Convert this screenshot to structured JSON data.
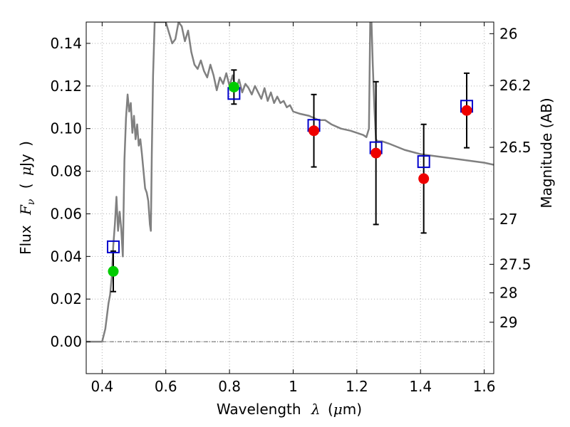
{
  "chart_data": {
    "type": "scatter",
    "xlabel": {
      "text": "Wavelength",
      "symbol": "λ",
      "unit_open": "(",
      "unit_mu": "μ",
      "unit_rest": "m)"
    },
    "ylabel": {
      "text": "Flux",
      "symbol": "F",
      "subscript": "ν",
      "unit_open": "(",
      "unit_mu": "μ",
      "unit_rest": "Jy",
      "unit_close": ")"
    },
    "ylabel_right": "Magnitude (AB)",
    "xlim": [
      0.35,
      1.63
    ],
    "ylim": [
      -0.015,
      0.15
    ],
    "grid": true,
    "x_ticks": [
      {
        "value": 0.4,
        "label": "0.4"
      },
      {
        "value": 0.6,
        "label": "0.6"
      },
      {
        "value": 0.8,
        "label": "0.8"
      },
      {
        "value": 1.0,
        "label": "1"
      },
      {
        "value": 1.2,
        "label": "1.2"
      },
      {
        "value": 1.4,
        "label": "1.4"
      },
      {
        "value": 1.6,
        "label": "1.6"
      }
    ],
    "y_ticks": [
      {
        "value": 0.0,
        "label": "0.00"
      },
      {
        "value": 0.02,
        "label": "0.02"
      },
      {
        "value": 0.04,
        "label": "0.04"
      },
      {
        "value": 0.06,
        "label": "0.06"
      },
      {
        "value": 0.08,
        "label": "0.08"
      },
      {
        "value": 0.1,
        "label": "0.10"
      },
      {
        "value": 0.12,
        "label": "0.12"
      },
      {
        "value": 0.14,
        "label": "0.14"
      }
    ],
    "mag_ticks": [
      {
        "mag": 26,
        "label": "26"
      },
      {
        "mag": 26.2,
        "label": "26.2"
      },
      {
        "mag": 26.5,
        "label": "26.5"
      },
      {
        "mag": 27,
        "label": "27"
      },
      {
        "mag": 27.5,
        "label": "27.5"
      },
      {
        "mag": 28,
        "label": "28"
      },
      {
        "mag": 29,
        "label": "29"
      }
    ],
    "colors": {
      "template": "#808080",
      "model": "#0000cc",
      "green": "#00cc00",
      "red": "#ee0000",
      "errorbar": "#000000",
      "grid": "#b0b0b0"
    },
    "template_sed": {
      "x": [
        0.35,
        0.4,
        0.405,
        0.41,
        0.415,
        0.42,
        0.425,
        0.43,
        0.435,
        0.44,
        0.445,
        0.45,
        0.455,
        0.46,
        0.465,
        0.47,
        0.475,
        0.48,
        0.485,
        0.49,
        0.495,
        0.5,
        0.505,
        0.51,
        0.515,
        0.52,
        0.525,
        0.53,
        0.535,
        0.54,
        0.545,
        0.55,
        0.553,
        0.556,
        0.56,
        0.565,
        0.6,
        0.61,
        0.62,
        0.63,
        0.64,
        0.65,
        0.66,
        0.67,
        0.68,
        0.69,
        0.7,
        0.71,
        0.72,
        0.73,
        0.74,
        0.75,
        0.76,
        0.77,
        0.78,
        0.79,
        0.8,
        0.81,
        0.82,
        0.83,
        0.84,
        0.85,
        0.86,
        0.87,
        0.88,
        0.89,
        0.9,
        0.91,
        0.92,
        0.93,
        0.94,
        0.95,
        0.96,
        0.97,
        0.98,
        0.99,
        1.0,
        1.02,
        1.05,
        1.08,
        1.1,
        1.12,
        1.15,
        1.18,
        1.2,
        1.22,
        1.23,
        1.238,
        1.242,
        1.246,
        1.25,
        1.255,
        1.26,
        1.265,
        1.27,
        1.28,
        1.3,
        1.35,
        1.4,
        1.45,
        1.5,
        1.55,
        1.6,
        1.63
      ],
      "y": [
        0.0,
        0.0,
        0.003,
        0.006,
        0.012,
        0.018,
        0.022,
        0.03,
        0.045,
        0.055,
        0.068,
        0.052,
        0.061,
        0.053,
        0.04,
        0.085,
        0.105,
        0.116,
        0.108,
        0.112,
        0.098,
        0.106,
        0.095,
        0.102,
        0.092,
        0.095,
        0.088,
        0.08,
        0.072,
        0.07,
        0.066,
        0.055,
        0.052,
        0.088,
        0.125,
        0.15,
        0.15,
        0.145,
        0.14,
        0.142,
        0.15,
        0.148,
        0.141,
        0.146,
        0.136,
        0.13,
        0.128,
        0.132,
        0.127,
        0.124,
        0.13,
        0.125,
        0.118,
        0.124,
        0.121,
        0.126,
        0.12,
        0.125,
        0.118,
        0.123,
        0.117,
        0.121,
        0.119,
        0.116,
        0.12,
        0.117,
        0.114,
        0.119,
        0.113,
        0.117,
        0.112,
        0.115,
        0.112,
        0.113,
        0.11,
        0.111,
        0.108,
        0.107,
        0.106,
        0.104,
        0.104,
        0.102,
        0.1,
        0.099,
        0.098,
        0.097,
        0.096,
        0.1,
        0.15,
        0.15,
        0.13,
        0.11,
        0.095,
        0.094,
        0.094,
        0.094,
        0.093,
        0.09,
        0.088,
        0.087,
        0.086,
        0.085,
        0.084,
        0.083
      ]
    },
    "model_points": [
      {
        "x": 0.435,
        "y": 0.0445
      },
      {
        "x": 0.814,
        "y": 0.1165
      },
      {
        "x": 1.065,
        "y": 0.1015
      },
      {
        "x": 1.26,
        "y": 0.091
      },
      {
        "x": 1.41,
        "y": 0.0845
      },
      {
        "x": 1.545,
        "y": 0.1105
      }
    ],
    "observed_green": [
      {
        "x": 0.435,
        "y": 0.033,
        "err_low": 0.0095,
        "err_high": 0.0095
      },
      {
        "x": 0.814,
        "y": 0.1195,
        "err_low": 0.008,
        "err_high": 0.008
      }
    ],
    "observed_red": [
      {
        "x": 1.065,
        "y": 0.099,
        "err_low": 0.017,
        "err_high": 0.017
      },
      {
        "x": 1.26,
        "y": 0.0885,
        "err_low": 0.0335,
        "err_high": 0.0335
      },
      {
        "x": 1.41,
        "y": 0.0765,
        "err_low": 0.0255,
        "err_high": 0.0255
      },
      {
        "x": 1.545,
        "y": 0.1085,
        "err_low": 0.0175,
        "err_high": 0.0175
      }
    ]
  }
}
